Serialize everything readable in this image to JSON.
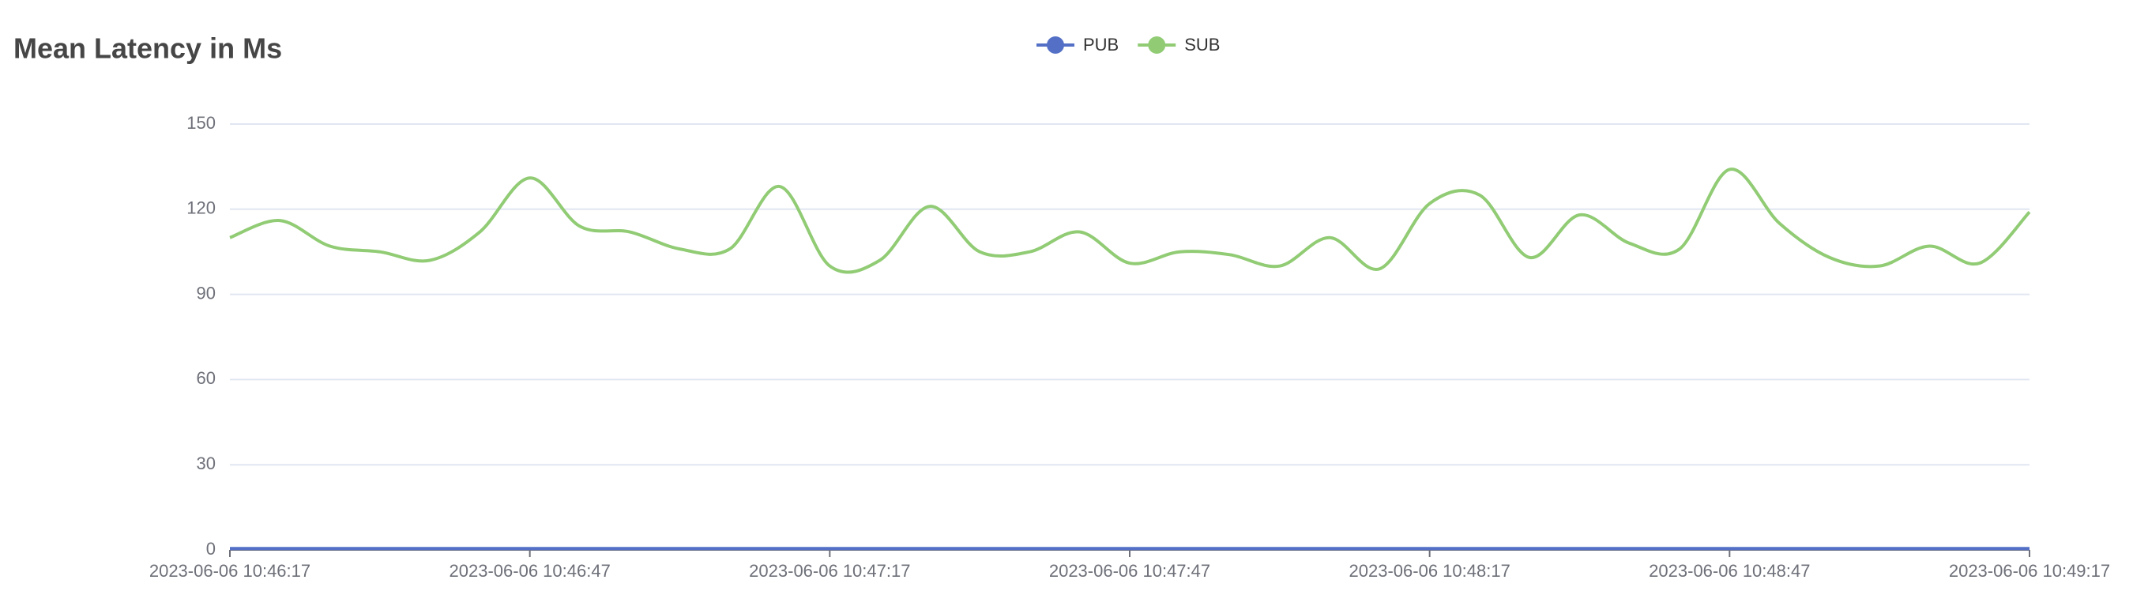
{
  "chart_data": {
    "type": "line",
    "title": "Mean Latency in Ms",
    "categories": [
      "2023-06-06 10:46:17",
      null,
      null,
      null,
      null,
      null,
      "2023-06-06 10:46:47",
      null,
      null,
      null,
      null,
      null,
      "2023-06-06 10:47:17",
      null,
      null,
      null,
      null,
      null,
      "2023-06-06 10:47:47",
      null,
      null,
      null,
      null,
      null,
      "2023-06-06 10:48:17",
      null,
      null,
      null,
      null,
      null,
      "2023-06-06 10:48:47",
      null,
      null,
      null,
      null,
      null,
      "2023-06-06 10:49:17"
    ],
    "series": [
      {
        "name": "PUB",
        "color": "#5470c6",
        "values": [
          0.5,
          0.5,
          0.5,
          0.5,
          0.5,
          0.5,
          0.5,
          0.5,
          0.5,
          0.5,
          0.5,
          0.5,
          0.5,
          0.5,
          0.5,
          0.5,
          0.5,
          0.5,
          0.5,
          0.5,
          0.5,
          0.5,
          0.5,
          0.5,
          0.5,
          0.5,
          0.5,
          0.5,
          0.5,
          0.5,
          0.5,
          0.5,
          0.5,
          0.5,
          0.5,
          0.5,
          0.5
        ]
      },
      {
        "name": "SUB",
        "color": "#91cc75",
        "values": [
          110,
          116,
          107,
          105,
          102,
          112,
          131,
          114,
          112,
          106,
          106,
          128,
          100,
          102,
          121,
          105,
          105,
          112,
          101,
          105,
          104,
          100,
          110,
          99,
          122,
          125,
          103,
          118,
          108,
          106,
          134,
          115,
          103,
          100,
          107,
          101,
          119
        ]
      }
    ],
    "ylim": [
      0,
      150
    ],
    "yticks": [
      0,
      30,
      60,
      90,
      120,
      150
    ],
    "grid": true
  }
}
